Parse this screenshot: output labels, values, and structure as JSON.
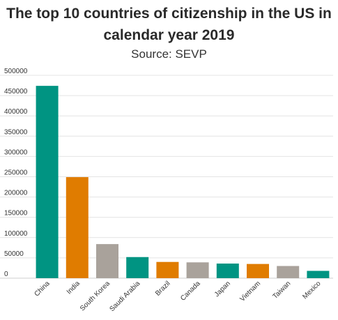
{
  "chart_data": {
    "type": "bar",
    "title": "The top 10 countries of citizenship in the US in calendar year 2019",
    "subtitle": "Source: SEVP",
    "categories": [
      "China",
      "India",
      "South Korea",
      "Saudi Arabia",
      "Brazil",
      "Canada",
      "Japan",
      "Vietnam",
      "Taiwan",
      "Mexico"
    ],
    "values": [
      474000,
      249000,
      84000,
      52000,
      40000,
      39000,
      36000,
      35000,
      30000,
      18000
    ],
    "colors": [
      "#009482",
      "#e07c00",
      "#a9a29b",
      "#009482",
      "#e07c00",
      "#a9a29b",
      "#009482",
      "#e07c00",
      "#a9a29b",
      "#009482"
    ],
    "ylim": [
      0,
      500000
    ],
    "yticks": [
      "0",
      "50000",
      "100000",
      "150000",
      "200000",
      "250000",
      "300000",
      "350000",
      "400000",
      "450000",
      "500000"
    ],
    "grid": true,
    "legend": "none"
  }
}
